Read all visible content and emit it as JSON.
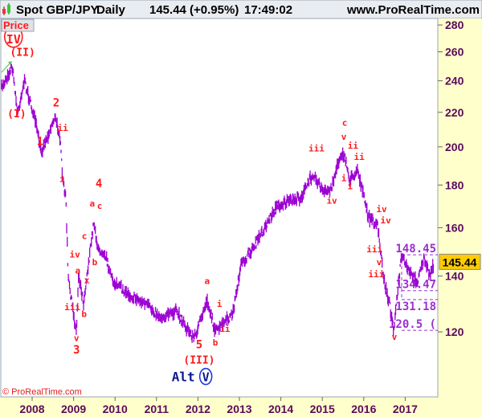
{
  "header": {
    "instrument": "Spot GBP/JPY",
    "period": "Daily",
    "quote": "145.44 (+0.95%)",
    "time": "17:49:02",
    "site": "www.ProRealTime.com"
  },
  "panel_label": "Price",
  "copyright": "© ProRealTime.com",
  "colors": {
    "series": "#9b00d3",
    "labels": "#ff1a1a",
    "axis_bg": "#ffffcc",
    "tick_text": "#5a0a5a",
    "alt": "#0a1a8c",
    "price_tag": "#ffcc00"
  },
  "chart_data": {
    "type": "line",
    "title": "Spot GBP/JPY Daily",
    "scale": "log",
    "ylim": [
      100,
      285
    ],
    "xlim": [
      2007.25,
      2017.8
    ],
    "yticks": [
      120,
      140,
      160,
      180,
      200,
      220,
      240,
      260,
      280
    ],
    "xticks": [
      2008,
      2009,
      2010,
      2011,
      2012,
      2013,
      2014,
      2015,
      2016,
      2017
    ],
    "last_price": "145.44",
    "series": [
      {
        "name": "GBP/JPY",
        "points": [
          [
            2007.26,
            235
          ],
          [
            2007.52,
            250
          ],
          [
            2007.65,
            219
          ],
          [
            2007.81,
            240
          ],
          [
            2008.1,
            212
          ],
          [
            2008.21,
            197
          ],
          [
            2008.39,
            207
          ],
          [
            2008.54,
            217
          ],
          [
            2008.66,
            208
          ],
          [
            2008.74,
            182
          ],
          [
            2008.81,
            175
          ],
          [
            2008.87,
            139
          ],
          [
            2009.01,
            125
          ],
          [
            2009.07,
            119.5
          ],
          [
            2009.12,
            141
          ],
          [
            2009.24,
            130
          ],
          [
            2009.4,
            150
          ],
          [
            2009.49,
            163
          ],
          [
            2009.59,
            150
          ],
          [
            2009.74,
            150
          ],
          [
            2009.94,
            138
          ],
          [
            2010.33,
            133
          ],
          [
            2010.71,
            130
          ],
          [
            2011.1,
            125
          ],
          [
            2011.49,
            127
          ],
          [
            2011.78,
            120
          ],
          [
            2011.91,
            118
          ],
          [
            2012.07,
            124
          ],
          [
            2012.22,
            131
          ],
          [
            2012.42,
            120
          ],
          [
            2012.84,
            126
          ],
          [
            2013.04,
            144
          ],
          [
            2013.43,
            154
          ],
          [
            2013.91,
            170
          ],
          [
            2014.49,
            174
          ],
          [
            2014.78,
            186
          ],
          [
            2015.03,
            176
          ],
          [
            2015.21,
            178
          ],
          [
            2015.46,
            197
          ],
          [
            2015.56,
            193
          ],
          [
            2015.66,
            182
          ],
          [
            2015.85,
            188
          ],
          [
            2016.1,
            165
          ],
          [
            2016.33,
            161
          ],
          [
            2016.49,
            138
          ],
          [
            2016.62,
            130
          ],
          [
            2016.72,
            121
          ],
          [
            2016.78,
            128
          ],
          [
            2016.91,
            148
          ],
          [
            2017.11,
            141
          ],
          [
            2017.3,
            138
          ],
          [
            2017.44,
            147
          ],
          [
            2017.59,
            140
          ],
          [
            2017.69,
            145
          ]
        ]
      }
    ],
    "levels": [
      {
        "value": 148.45,
        "label": "148.45"
      },
      {
        "value": 134.47,
        "label": "134.47"
      },
      {
        "value": 131.18,
        "label": "131.18"
      },
      {
        "value": 120.5,
        "label": "120.5 ("
      }
    ],
    "wave_labels": [
      {
        "text": "IV",
        "x": 2007.55,
        "y": 268,
        "degree": "primary",
        "circled": true
      },
      {
        "text": "(II)",
        "x": 2007.77,
        "y": 257,
        "degree": "primary"
      },
      {
        "text": "(I)",
        "x": 2007.63,
        "y": 217,
        "degree": "primary"
      },
      {
        "text": "2",
        "x": 2008.58,
        "y": 223.7,
        "degree": "intermediate"
      },
      {
        "text": "ii",
        "x": 2008.74,
        "y": 209,
        "degree": "minor"
      },
      {
        "text": "1",
        "x": 2008.19,
        "y": 201,
        "degree": "intermediate"
      },
      {
        "text": "i",
        "x": 2008.72,
        "y": 181.6,
        "degree": "minor"
      },
      {
        "text": "4",
        "x": 2009.61,
        "y": 179,
        "degree": "intermediate"
      },
      {
        "text": "a",
        "x": 2009.45,
        "y": 169.7,
        "degree": "minor"
      },
      {
        "text": "c",
        "x": 2009.63,
        "y": 168.5,
        "degree": "minor"
      },
      {
        "text": "c",
        "x": 2009.26,
        "y": 155,
        "degree": "minor"
      },
      {
        "text": "iv",
        "x": 2009.03,
        "y": 147.4,
        "degree": "minor"
      },
      {
        "text": "b",
        "x": 2009.51,
        "y": 144.3,
        "degree": "minor"
      },
      {
        "text": "a",
        "x": 2009.1,
        "y": 141,
        "degree": "minor"
      },
      {
        "text": "x",
        "x": 2009.32,
        "y": 137.3,
        "degree": "minor"
      },
      {
        "text": "iii",
        "x": 2008.97,
        "y": 127.4,
        "degree": "minor"
      },
      {
        "text": "b",
        "x": 2009.12,
        "y": 125,
        "degree": "minor"
      },
      {
        "text": "v",
        "x": 2009.07,
        "y": 117,
        "degree": "minor"
      },
      {
        "text": "3",
        "x": 2009.07,
        "y": 113,
        "degree": "intermediate"
      },
      {
        "text": "a",
        "x": 2012.22,
        "y": 137,
        "degree": "minor"
      },
      {
        "text": "i",
        "x": 2012.52,
        "y": 128.5,
        "degree": "minor"
      },
      {
        "text": "ii",
        "x": 2012.65,
        "y": 120,
        "degree": "minor"
      },
      {
        "text": "b",
        "x": 2012.42,
        "y": 115.6,
        "degree": "minor"
      },
      {
        "text": "5",
        "x": 2012.03,
        "y": 114.7,
        "degree": "intermediate"
      },
      {
        "text": "(III)",
        "x": 2012.03,
        "y": 110,
        "degree": "primary"
      },
      {
        "text": "c",
        "x": 2015.54,
        "y": 212,
        "degree": "minor"
      },
      {
        "text": "v",
        "x": 2015.52,
        "y": 204,
        "degree": "minor"
      },
      {
        "text": "iii",
        "x": 2014.86,
        "y": 197.5,
        "degree": "minor"
      },
      {
        "text": "ii",
        "x": 2015.71,
        "y": 199,
        "degree": "minor"
      },
      {
        "text": "ii",
        "x": 2015.89,
        "y": 193,
        "degree": "minor"
      },
      {
        "text": "i",
        "x": 2015.52,
        "y": 182,
        "degree": "minor"
      },
      {
        "text": "i",
        "x": 2015.67,
        "y": 178,
        "degree": "minor"
      },
      {
        "text": "iv",
        "x": 2015.23,
        "y": 171,
        "degree": "minor"
      },
      {
        "text": "iv",
        "x": 2016.43,
        "y": 167,
        "degree": "minor"
      },
      {
        "text": "iv",
        "x": 2016.53,
        "y": 162,
        "degree": "minor"
      },
      {
        "text": "iii",
        "x": 2016.26,
        "y": 149.5,
        "degree": "minor"
      },
      {
        "text": "v",
        "x": 2016.37,
        "y": 144.3,
        "degree": "minor"
      },
      {
        "text": "iii",
        "x": 2016.3,
        "y": 139.5,
        "degree": "minor"
      },
      {
        "text": "v",
        "x": 2016.74,
        "y": 119,
        "degree": "minor"
      }
    ],
    "alt_label": {
      "prefix": "Alt",
      "wave": "V",
      "x": 2011.84,
      "y": 104.7
    }
  }
}
